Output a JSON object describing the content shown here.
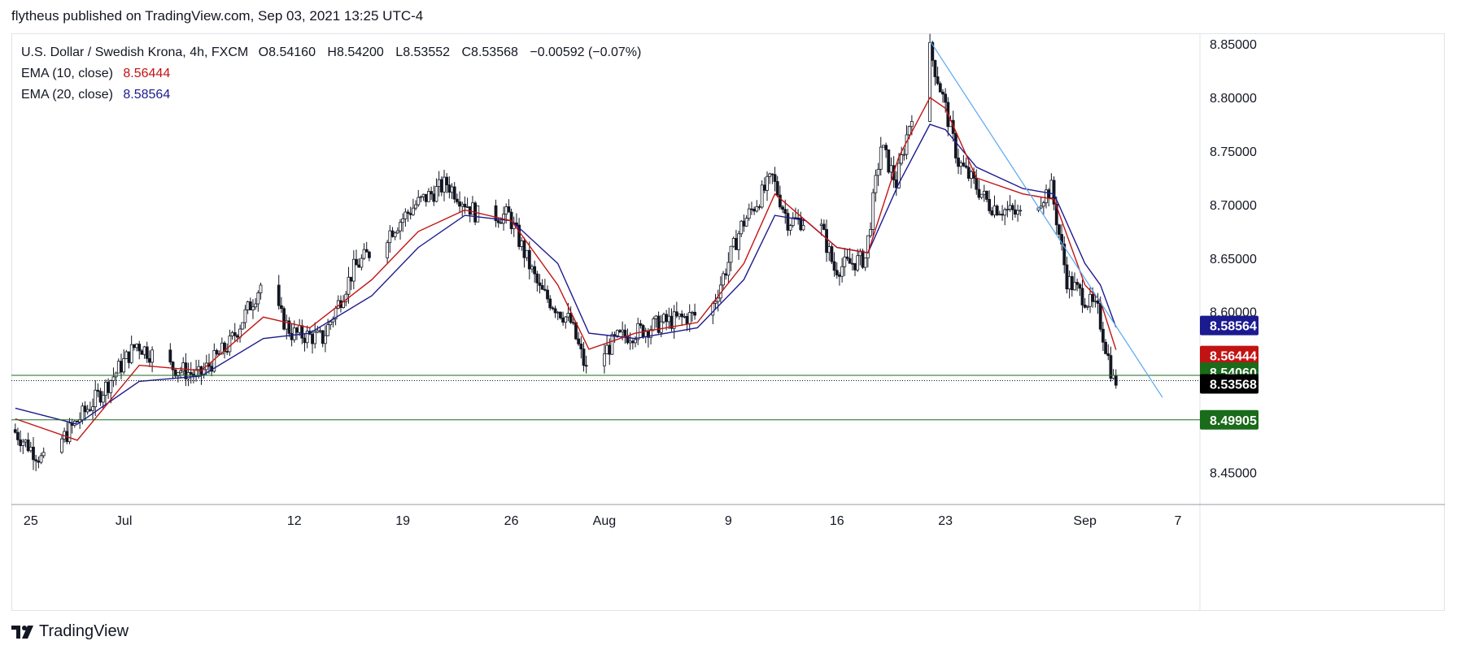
{
  "header": {
    "published": "flytheus published on TradingView.com, Sep 03, 2021 13:25 UTC-4"
  },
  "footer": {
    "logo_icon": "tradingview-logo-icon",
    "brand": "TradingView"
  },
  "legend": {
    "symbol": "U.S. Dollar / Swedish Krona, 4h, FXCM",
    "open_label": "O",
    "open": "8.54160",
    "high_label": "H",
    "high": "8.54200",
    "low_label": "L",
    "low": "8.53552",
    "close_label": "C",
    "close": "8.53568",
    "change": "−0.00592 (−0.07%)",
    "ema10_label": "EMA (10, close)",
    "ema10_value": "8.56444",
    "ema20_label": "EMA (20, close)",
    "ema20_value": "8.58564"
  },
  "colors": {
    "candle": "#131722",
    "ema10": "#c21313",
    "ema20": "#1c1a8f",
    "trendline": "#5aa7f0",
    "support": "#1a6b1a",
    "last_price_bg": "#000000",
    "grid": "#e0e3eb"
  },
  "chart_data": {
    "type": "candlestick",
    "symbol": "U.S. Dollar / Swedish Krona",
    "interval": "4h",
    "ylim": [
      8.42,
      8.86
    ],
    "y_ticks": [
      "8.85000",
      "8.80000",
      "8.75000",
      "8.70000",
      "8.65000",
      "8.60000",
      "8.45000"
    ],
    "x_ticks": [
      "25",
      "Jul",
      "12",
      "19",
      "26",
      "Aug",
      "9",
      "16",
      "23",
      "Sep",
      "7"
    ],
    "price_labels": [
      {
        "name": "ema20",
        "value": 8.58564,
        "text": "8.58564"
      },
      {
        "name": "ema10",
        "value": 8.56444,
        "text": "8.56444"
      },
      {
        "name": "support_upper",
        "value": 8.5406,
        "text": "8.54060"
      },
      {
        "name": "last_price",
        "value": 8.53568,
        "text": "8.53568"
      },
      {
        "name": "support_lower",
        "value": 8.49905,
        "text": "8.49905"
      }
    ],
    "horizontal_lines": [
      {
        "name": "support_upper",
        "value": 8.5406
      },
      {
        "name": "support_lower",
        "value": 8.49905
      }
    ],
    "trendline": {
      "from": {
        "date": "2021-08-22",
        "value": 8.853
      },
      "to": {
        "date": "2021-09-06",
        "value": 8.52
      }
    },
    "price_path": [
      [
        "2021-06-24",
        8.49
      ],
      [
        "2021-06-26",
        8.46
      ],
      [
        "2021-06-30",
        8.53
      ],
      [
        "2021-07-02",
        8.57
      ],
      [
        "2021-07-04",
        8.55
      ],
      [
        "2021-07-06",
        8.54
      ],
      [
        "2021-07-08",
        8.57
      ],
      [
        "2021-07-10",
        8.625
      ],
      [
        "2021-07-12",
        8.58
      ],
      [
        "2021-07-14",
        8.575
      ],
      [
        "2021-07-16",
        8.64
      ],
      [
        "2021-07-18",
        8.67
      ],
      [
        "2021-07-20",
        8.7
      ],
      [
        "2021-07-22",
        8.72
      ],
      [
        "2021-07-24",
        8.69
      ],
      [
        "2021-07-26",
        8.69
      ],
      [
        "2021-07-28",
        8.62
      ],
      [
        "2021-07-30",
        8.59
      ],
      [
        "2021-07-31",
        8.545
      ],
      [
        "2021-08-02",
        8.575
      ],
      [
        "2021-08-05",
        8.59
      ],
      [
        "2021-08-08",
        8.6
      ],
      [
        "2021-08-10",
        8.68
      ],
      [
        "2021-08-12",
        8.725
      ],
      [
        "2021-08-13",
        8.685
      ],
      [
        "2021-08-15",
        8.685
      ],
      [
        "2021-08-16",
        8.64
      ],
      [
        "2021-08-18",
        8.65
      ],
      [
        "2021-08-19",
        8.755
      ],
      [
        "2021-08-20",
        8.72
      ],
      [
        "2021-08-22",
        8.853
      ],
      [
        "2021-08-23",
        8.8
      ],
      [
        "2021-08-24",
        8.74
      ],
      [
        "2021-08-26",
        8.7
      ],
      [
        "2021-08-28",
        8.69
      ],
      [
        "2021-08-30",
        8.715
      ],
      [
        "2021-08-31",
        8.63
      ],
      [
        "2021-09-01",
        8.615
      ],
      [
        "2021-09-02",
        8.6
      ],
      [
        "2021-09-03",
        8.5357
      ]
    ],
    "ema10_path": [
      [
        "2021-06-24",
        8.5
      ],
      [
        "2021-06-28",
        8.48
      ],
      [
        "2021-07-02",
        8.55
      ],
      [
        "2021-07-06",
        8.545
      ],
      [
        "2021-07-10",
        8.595
      ],
      [
        "2021-07-13",
        8.585
      ],
      [
        "2021-07-17",
        8.63
      ],
      [
        "2021-07-20",
        8.675
      ],
      [
        "2021-07-23",
        8.695
      ],
      [
        "2021-07-26",
        8.685
      ],
      [
        "2021-07-29",
        8.625
      ],
      [
        "2021-07-31",
        8.565
      ],
      [
        "2021-08-03",
        8.58
      ],
      [
        "2021-08-07",
        8.59
      ],
      [
        "2021-08-10",
        8.645
      ],
      [
        "2021-08-12",
        8.71
      ],
      [
        "2021-08-14",
        8.685
      ],
      [
        "2021-08-16",
        8.66
      ],
      [
        "2021-08-18",
        8.655
      ],
      [
        "2021-08-20",
        8.745
      ],
      [
        "2021-08-22",
        8.8
      ],
      [
        "2021-08-23",
        8.79
      ],
      [
        "2021-08-25",
        8.725
      ],
      [
        "2021-08-28",
        8.71
      ],
      [
        "2021-08-30",
        8.705
      ],
      [
        "2021-09-01",
        8.625
      ],
      [
        "2021-09-02",
        8.61
      ],
      [
        "2021-09-03",
        8.56444
      ]
    ],
    "ema20_path": [
      [
        "2021-06-24",
        8.51
      ],
      [
        "2021-06-28",
        8.495
      ],
      [
        "2021-07-02",
        8.535
      ],
      [
        "2021-07-06",
        8.54
      ],
      [
        "2021-07-10",
        8.575
      ],
      [
        "2021-07-13",
        8.58
      ],
      [
        "2021-07-17",
        8.615
      ],
      [
        "2021-07-20",
        8.66
      ],
      [
        "2021-07-23",
        8.69
      ],
      [
        "2021-07-26",
        8.685
      ],
      [
        "2021-07-29",
        8.645
      ],
      [
        "2021-07-31",
        8.58
      ],
      [
        "2021-08-03",
        8.575
      ],
      [
        "2021-08-07",
        8.585
      ],
      [
        "2021-08-10",
        8.63
      ],
      [
        "2021-08-12",
        8.69
      ],
      [
        "2021-08-14",
        8.685
      ],
      [
        "2021-08-16",
        8.66
      ],
      [
        "2021-08-18",
        8.655
      ],
      [
        "2021-08-20",
        8.72
      ],
      [
        "2021-08-22",
        8.775
      ],
      [
        "2021-08-23",
        8.77
      ],
      [
        "2021-08-25",
        8.735
      ],
      [
        "2021-08-28",
        8.715
      ],
      [
        "2021-08-30",
        8.71
      ],
      [
        "2021-09-01",
        8.645
      ],
      [
        "2021-09-02",
        8.625
      ],
      [
        "2021-09-03",
        8.58564
      ]
    ]
  }
}
